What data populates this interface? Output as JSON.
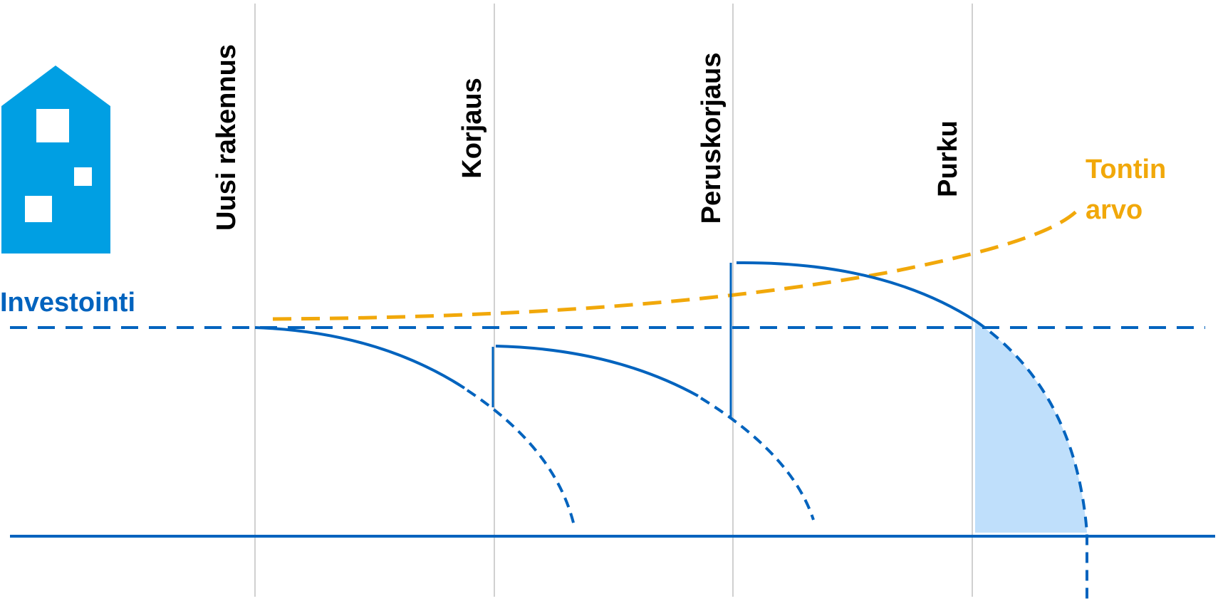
{
  "phases": [
    {
      "id": "new",
      "label": "Uusi rakennus"
    },
    {
      "id": "repair",
      "label": "Korjaus"
    },
    {
      "id": "renovation",
      "label": "Peruskorjaus"
    },
    {
      "id": "demolition",
      "label": "Purku"
    }
  ],
  "investment": {
    "label": "Investointi"
  },
  "plot_value": {
    "label_line1": "Tontin",
    "label_line2": "arvo"
  },
  "icons": {
    "building": "building-icon"
  },
  "colors": {
    "primary_blue": "#0063be",
    "building_blue": "#009fe3",
    "orange": "#f1a80a",
    "fill_light_blue": "#bfdffb",
    "gridline": "#d0d0d0",
    "text": "#000000"
  }
}
